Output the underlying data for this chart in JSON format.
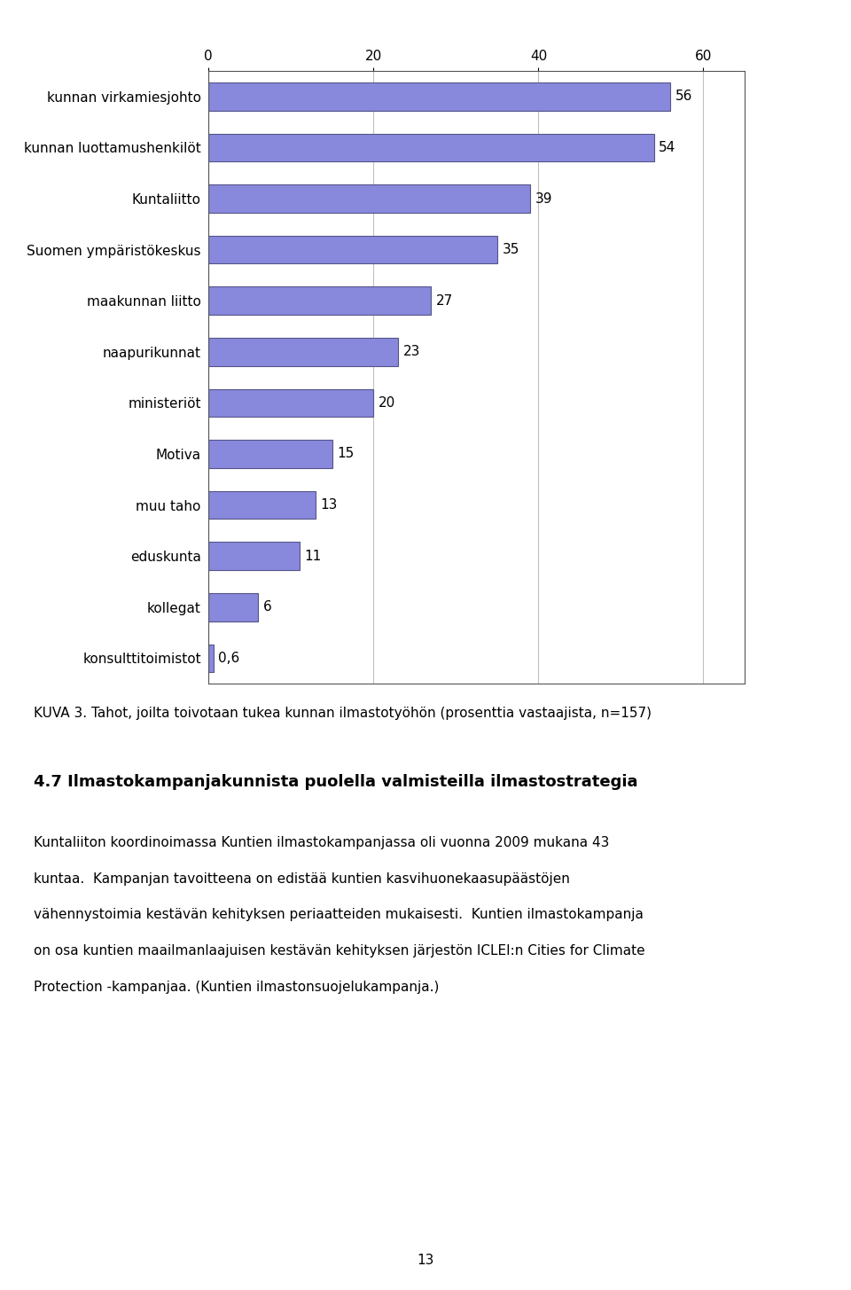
{
  "categories": [
    "kunnan virkamiesjohto",
    "kunnan luottamushenkilöt",
    "Kuntaliitto",
    "Suomen ympäristökeskus",
    "maakunnan liitto",
    "naapurikunnat",
    "ministeriöt",
    "Motiva",
    "muu taho",
    "eduskunta",
    "kollegat",
    "konsulttitoimistot"
  ],
  "values": [
    56,
    54,
    39,
    35,
    27,
    23,
    20,
    15,
    13,
    11,
    6,
    0.6
  ],
  "bar_color": "#8888dd",
  "bar_edgecolor": "#555588",
  "xlabel": "%",
  "xlim": [
    0,
    65
  ],
  "xticks": [
    0,
    20,
    40,
    60
  ],
  "value_labels": [
    "56",
    "54",
    "39",
    "35",
    "27",
    "23",
    "20",
    "15",
    "13",
    "11",
    "6",
    "0,6"
  ],
  "caption": "KUVA 3. Tahot, joilta toivotaan tukea kunnan ilmastotyöhön (prosenttia vastaajista, n=157)",
  "section_title": "4.7 Ilmastokampanjakunnista puolella valmisteilla ilmastostrategia",
  "body_lines": [
    "Kuntaliiton koordinoimassa Kuntien ilmastokampanjassa oli vuonna 2009 mukana 43",
    "kuntaa.  Kampanjan tavoitteena on edistää kuntien kasvihuonekaasupäästöjen",
    "vähennystoimia kestävän kehityksen periaatteiden mukaisesti.  Kuntien ilmastokampanja",
    "on osa kuntien maailmanlaajuisen kestävän kehityksen järjestön ICLEI:n Cities for Climate",
    "Protection -kampanjaa. (Kuntien ilmastonsuojelukampanja.)"
  ],
  "page_number": "13",
  "background_color": "#ffffff",
  "chart_bg_color": "#ffffff",
  "grid_color": "#c0c0c0",
  "label_fontsize": 11,
  "value_fontsize": 11,
  "tick_fontsize": 11,
  "caption_fontsize": 11,
  "section_title_fontsize": 13,
  "body_fontsize": 11
}
